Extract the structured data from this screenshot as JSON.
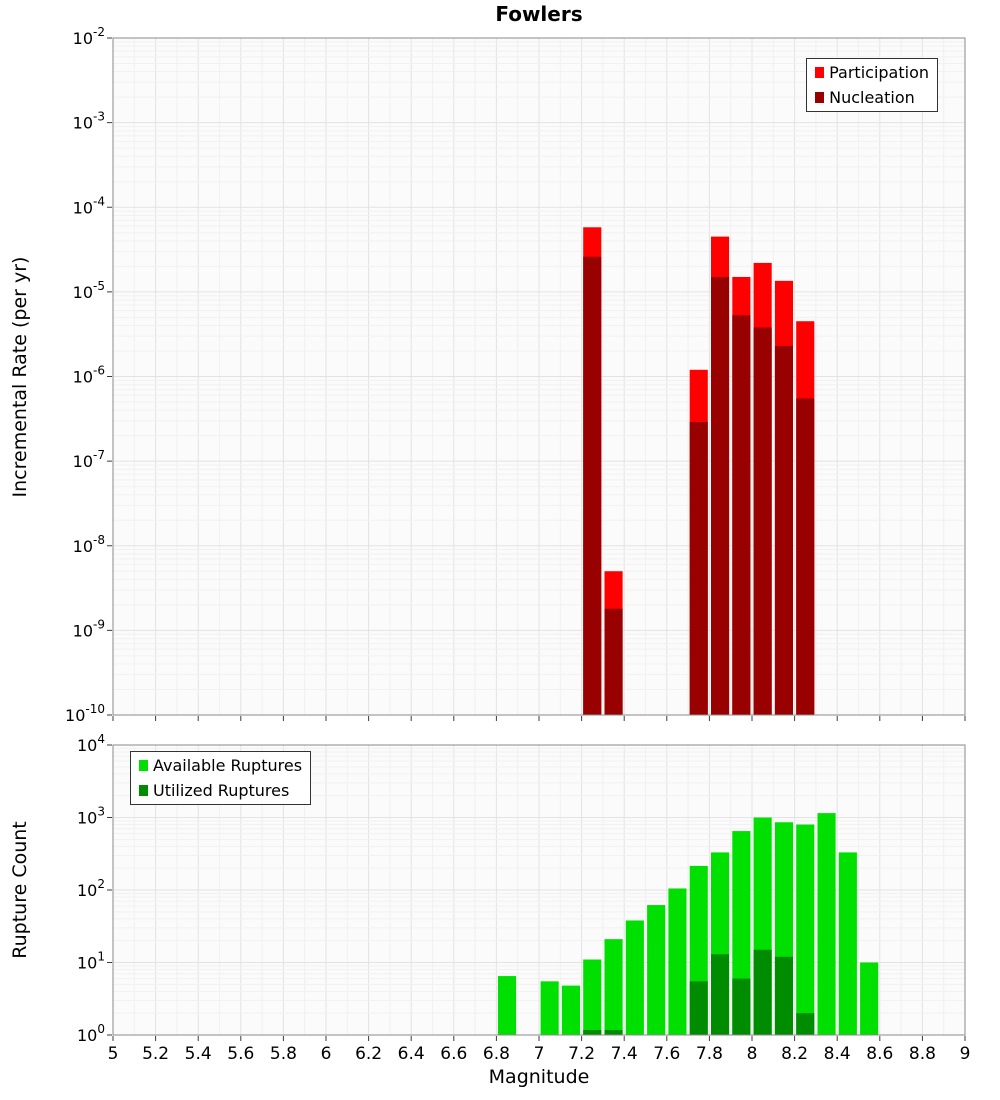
{
  "title": "Fowlers",
  "chart_data": [
    {
      "type": "bar",
      "title": "Fowlers",
      "ylabel": "Incremental Rate (per yr)",
      "xlabel": "Magnitude",
      "x_axis": {
        "min": 5,
        "max": 9,
        "tick_step": 0.2,
        "minor_step": 0.1
      },
      "y_axis": {
        "scale": "log",
        "min_exp": -10,
        "max_exp": -2
      },
      "bar_width_units": 0.085,
      "grid": true,
      "legend_position": "top-right",
      "series": [
        {
          "name": "Participation",
          "color": "#ff0000",
          "x": [
            7.25,
            7.35,
            7.75,
            7.85,
            7.95,
            8.05,
            8.15,
            8.25
          ],
          "values": [
            5.8e-05,
            5e-09,
            1.2e-06,
            4.5e-05,
            1.5e-05,
            2.2e-05,
            1.35e-05,
            4.5e-06
          ]
        },
        {
          "name": "Nucleation",
          "color": "#990000",
          "x": [
            7.25,
            7.35,
            7.75,
            7.85,
            7.95,
            8.05,
            8.15,
            8.25
          ],
          "values": [
            2.6e-05,
            1.8e-09,
            2.9e-07,
            1.5e-05,
            5.3e-06,
            3.8e-06,
            2.3e-06,
            5.5e-07
          ]
        }
      ]
    },
    {
      "type": "bar",
      "ylabel": "Rupture Count",
      "xlabel": "Magnitude",
      "x_axis": {
        "min": 5,
        "max": 9,
        "tick_step": 0.2,
        "minor_step": 0.1
      },
      "y_axis": {
        "scale": "log",
        "min_exp": 0,
        "max_exp": 4
      },
      "bar_width_units": 0.085,
      "grid": true,
      "legend_position": "top-left",
      "series": [
        {
          "name": "Available Ruptures",
          "color": "#00e000",
          "x": [
            6.85,
            7.05,
            7.15,
            7.25,
            7.35,
            7.45,
            7.55,
            7.65,
            7.75,
            7.85,
            7.95,
            8.05,
            8.15,
            8.25,
            8.35,
            8.45,
            8.55
          ],
          "values": [
            6.5,
            5.5,
            4.8,
            11,
            21,
            38,
            62,
            105,
            215,
            330,
            650,
            1000,
            860,
            800,
            1150,
            330,
            10
          ]
        },
        {
          "name": "Utilized Ruptures",
          "color": "#008c00",
          "x": [
            7.25,
            7.35,
            7.75,
            7.85,
            7.95,
            8.05,
            8.15,
            8.25
          ],
          "values": [
            1,
            1,
            5.5,
            13,
            6,
            15,
            12,
            2
          ]
        }
      ]
    }
  ]
}
